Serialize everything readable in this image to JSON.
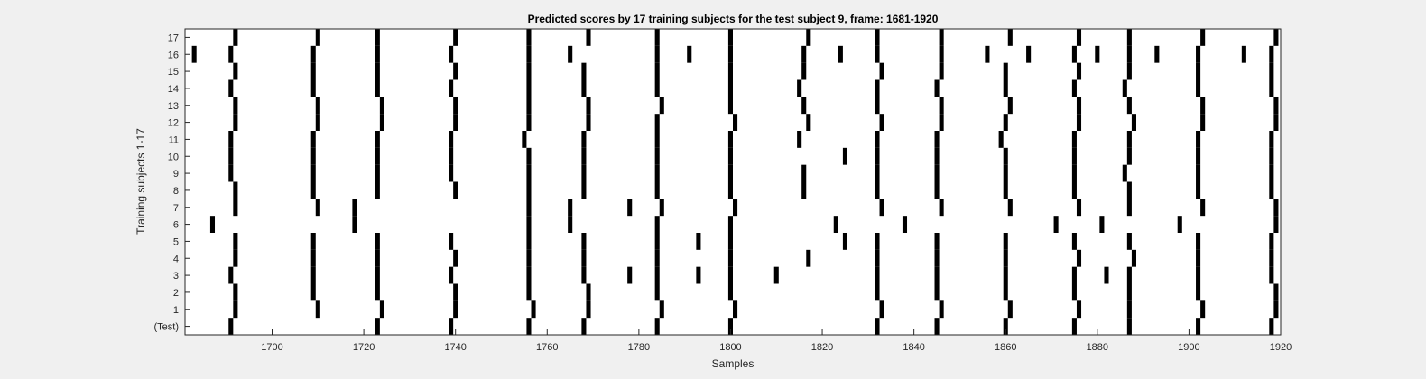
{
  "chart_data": {
    "type": "heatmap",
    "title": "Predicted scores by 17 training subjects for the test subject 9, frame: 1681-1920",
    "xlabel": "Samples",
    "ylabel": "Training subjects 1-17",
    "xlim": [
      1681,
      1920
    ],
    "x_ticks": [
      1700,
      1720,
      1740,
      1760,
      1780,
      1800,
      1820,
      1840,
      1860,
      1880,
      1900,
      1920
    ],
    "y_tick_labels": [
      "(Test)",
      "1",
      "2",
      "3",
      "4",
      "5",
      "6",
      "7",
      "8",
      "9",
      "10",
      "11",
      "12",
      "13",
      "14",
      "15",
      "16",
      "17"
    ],
    "colors": {
      "background": "#f0f0f0",
      "plot_area": "#ffffff",
      "mark": "#000000",
      "axis": "#262626"
    },
    "grid": false,
    "rows": [
      {
        "label": "(Test)",
        "x": [
          1691,
          1723,
          1739,
          1756,
          1768,
          1784,
          1800,
          1832,
          1845,
          1860,
          1875,
          1887,
          1902,
          1918
        ]
      },
      {
        "label": "1",
        "x": [
          1692,
          1710,
          1724,
          1740,
          1757,
          1769,
          1785,
          1801,
          1833,
          1846,
          1861,
          1876,
          1887,
          1903,
          1919
        ]
      },
      {
        "label": "2",
        "x": [
          1692,
          1709,
          1723,
          1740,
          1756,
          1769,
          1784,
          1800,
          1832,
          1845,
          1860,
          1875,
          1887,
          1902,
          1919
        ]
      },
      {
        "label": "3",
        "x": [
          1691,
          1709,
          1723,
          1739,
          1756,
          1768,
          1778,
          1784,
          1793,
          1800,
          1810,
          1832,
          1845,
          1860,
          1875,
          1882,
          1887,
          1902,
          1918
        ]
      },
      {
        "label": "4",
        "x": [
          1692,
          1709,
          1723,
          1740,
          1756,
          1768,
          1784,
          1800,
          1817,
          1832,
          1845,
          1860,
          1876,
          1888,
          1902,
          1918
        ]
      },
      {
        "label": "5",
        "x": [
          1692,
          1709,
          1723,
          1739,
          1756,
          1768,
          1784,
          1793,
          1800,
          1825,
          1832,
          1845,
          1860,
          1875,
          1887,
          1902,
          1918
        ]
      },
      {
        "label": "6",
        "x": [
          1687,
          1718,
          1756,
          1765,
          1784,
          1800,
          1823,
          1838,
          1871,
          1881,
          1898,
          1919
        ]
      },
      {
        "label": "7",
        "x": [
          1692,
          1710,
          1718,
          1756,
          1765,
          1778,
          1785,
          1801,
          1833,
          1846,
          1861,
          1876,
          1887,
          1903,
          1919
        ]
      },
      {
        "label": "8",
        "x": [
          1692,
          1709,
          1723,
          1740,
          1756,
          1768,
          1784,
          1800,
          1816,
          1832,
          1845,
          1860,
          1875,
          1887,
          1902,
          1918
        ]
      },
      {
        "label": "9",
        "x": [
          1691,
          1709,
          1723,
          1739,
          1756,
          1768,
          1784,
          1800,
          1816,
          1832,
          1845,
          1860,
          1875,
          1886,
          1902,
          1918
        ]
      },
      {
        "label": "10",
        "x": [
          1691,
          1709,
          1723,
          1739,
          1756,
          1768,
          1784,
          1800,
          1825,
          1832,
          1845,
          1860,
          1875,
          1887,
          1902,
          1918
        ]
      },
      {
        "label": "11",
        "x": [
          1691,
          1709,
          1723,
          1739,
          1755,
          1768,
          1784,
          1800,
          1815,
          1832,
          1845,
          1859,
          1875,
          1887,
          1902,
          1918
        ]
      },
      {
        "label": "12",
        "x": [
          1692,
          1710,
          1724,
          1740,
          1756,
          1769,
          1784,
          1801,
          1817,
          1833,
          1846,
          1860,
          1876,
          1888,
          1903,
          1919
        ]
      },
      {
        "label": "13",
        "x": [
          1692,
          1710,
          1724,
          1740,
          1756,
          1769,
          1785,
          1800,
          1816,
          1832,
          1846,
          1861,
          1876,
          1887,
          1903,
          1919
        ]
      },
      {
        "label": "14",
        "x": [
          1691,
          1709,
          1723,
          1739,
          1756,
          1768,
          1784,
          1800,
          1815,
          1832,
          1845,
          1860,
          1875,
          1886,
          1902,
          1918
        ]
      },
      {
        "label": "15",
        "x": [
          1692,
          1709,
          1723,
          1740,
          1756,
          1768,
          1784,
          1800,
          1816,
          1833,
          1846,
          1860,
          1876,
          1887,
          1902,
          1918
        ]
      },
      {
        "label": "16",
        "x": [
          1683,
          1691,
          1709,
          1723,
          1739,
          1756,
          1765,
          1784,
          1791,
          1800,
          1816,
          1824,
          1832,
          1846,
          1856,
          1865,
          1875,
          1880,
          1887,
          1893,
          1902,
          1912,
          1918
        ]
      },
      {
        "label": "17",
        "x": [
          1692,
          1710,
          1723,
          1740,
          1756,
          1769,
          1784,
          1800,
          1817,
          1832,
          1846,
          1861,
          1876,
          1887,
          1903,
          1919
        ]
      }
    ]
  }
}
